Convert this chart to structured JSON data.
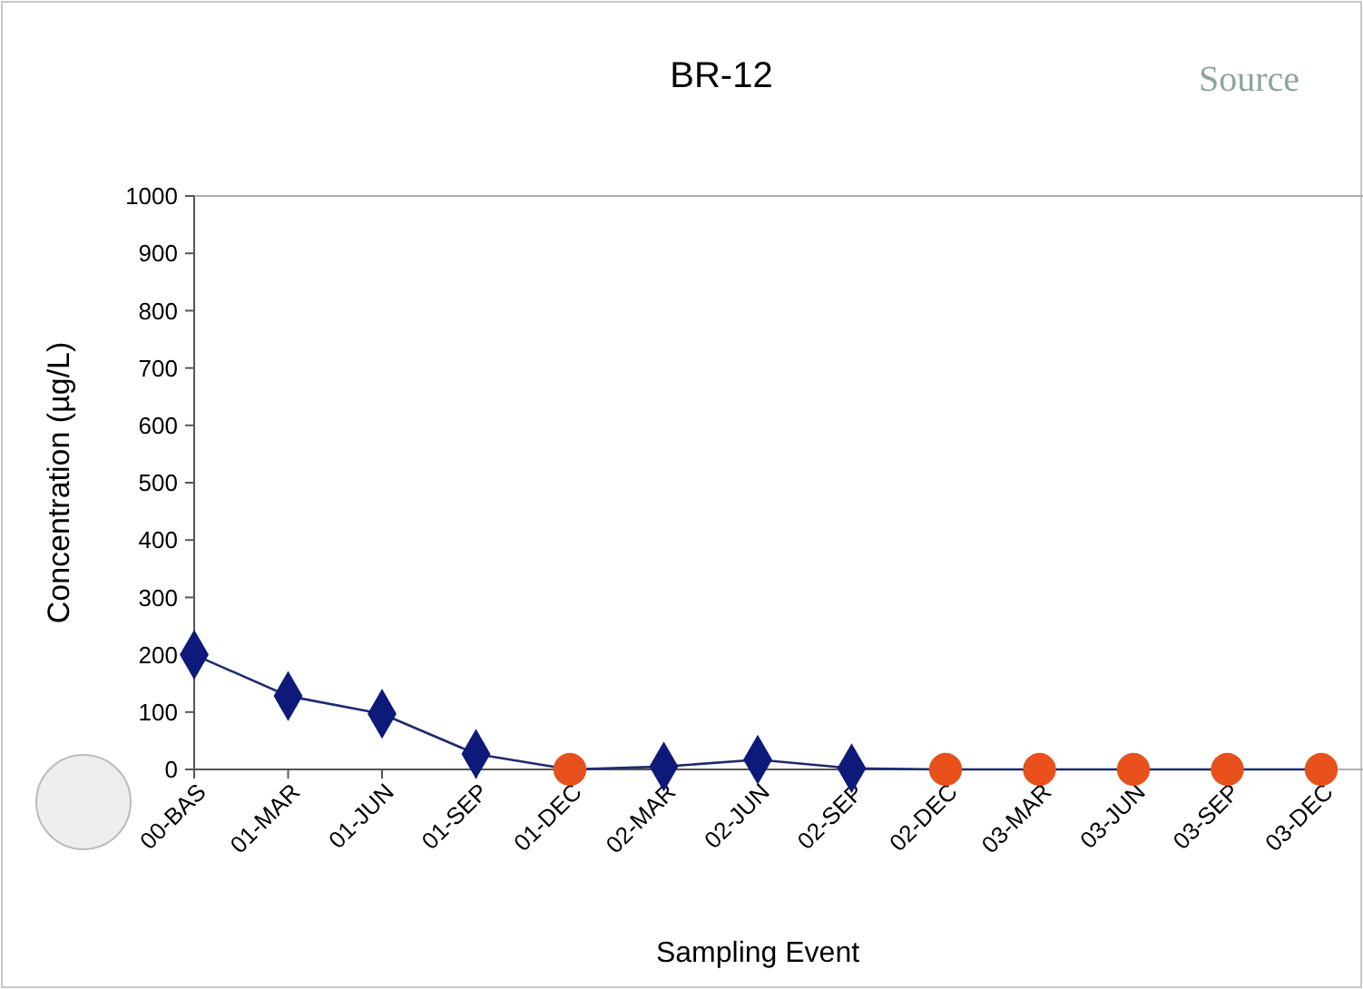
{
  "chart_data": {
    "type": "line",
    "title": "BR-12",
    "xlabel": "Sampling Event",
    "ylabel": "Concentration (µg/L)",
    "annotations": [
      "Source"
    ],
    "categories": [
      "00-BAS",
      "01-MAR",
      "01-JUN",
      "01-SEP",
      "01-DEC",
      "02-MAR",
      "02-JUN",
      "02-SEP",
      "02-DEC",
      "03-MAR",
      "03-JUN",
      "03-SEP",
      "03-DEC"
    ],
    "ylim": [
      0,
      1000
    ],
    "yticks": [
      0,
      100,
      200,
      300,
      400,
      500,
      600,
      700,
      800,
      900,
      1000
    ],
    "grid": false,
    "series": [
      {
        "color": "#1f2a6e",
        "marker": "none",
        "line_style": "solid",
        "values": [
          200,
          128,
          97,
          27,
          0,
          5,
          17,
          2,
          0,
          0,
          0,
          0,
          0
        ]
      },
      {
        "type": "scatter",
        "color": "#0d1a7a",
        "marker": "diamond",
        "values": [
          200,
          128,
          97,
          27,
          null,
          5,
          17,
          2,
          null,
          null,
          null,
          null,
          null
        ]
      },
      {
        "type": "scatter",
        "color": "#e8501c",
        "marker": "circle",
        "values": [
          null,
          null,
          null,
          null,
          0,
          null,
          null,
          null,
          0,
          0,
          0,
          0,
          0
        ]
      }
    ]
  }
}
